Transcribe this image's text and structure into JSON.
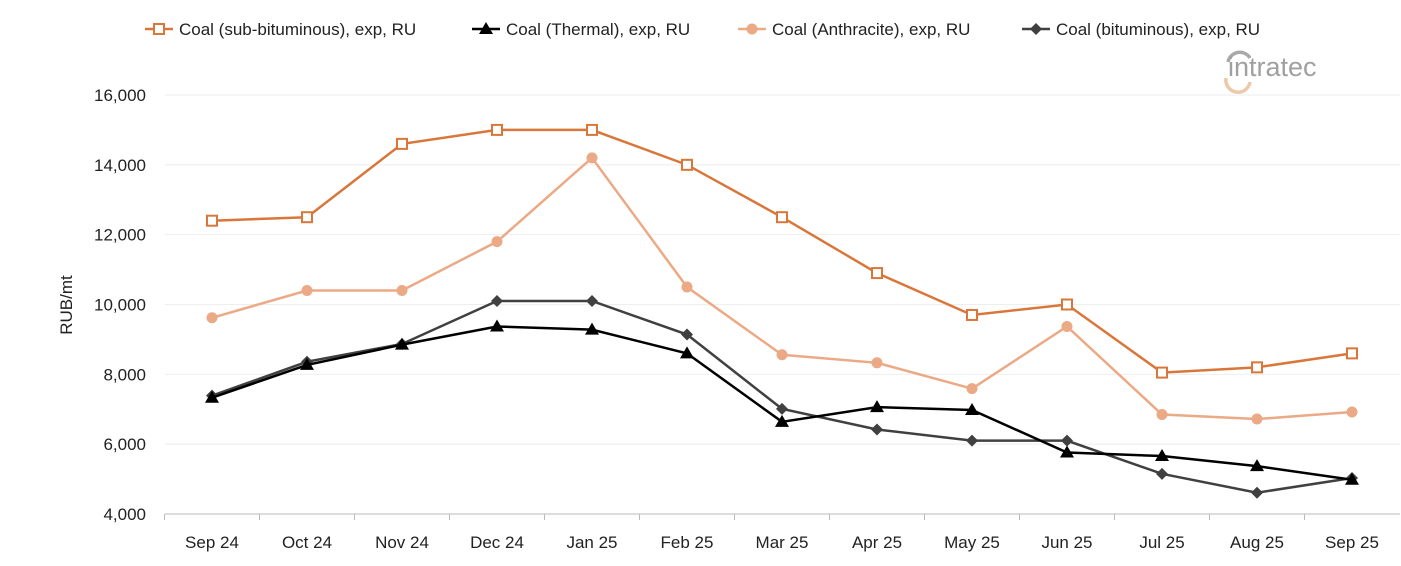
{
  "chart_data": {
    "type": "line",
    "title": "",
    "xlabel": "",
    "ylabel": "RUB/mt",
    "ylim": [
      4000,
      16000
    ],
    "yticks": [
      4000,
      6000,
      8000,
      10000,
      12000,
      14000,
      16000
    ],
    "ytick_labels": [
      "4,000",
      "6,000",
      "8,000",
      "10,000",
      "12,000",
      "14,000",
      "16,000"
    ],
    "grid": "horizontal",
    "legend_position": "top",
    "categories": [
      "Sep 24",
      "Oct 24",
      "Nov 24",
      "Dec 24",
      "Jan 25",
      "Feb 25",
      "Mar 25",
      "Apr 25",
      "May 25",
      "Jun 25",
      "Jul 25",
      "Aug 25",
      "Sep 25"
    ],
    "series": [
      {
        "name": "Coal (sub-bituminous), exp, RU",
        "color": "#D9773A",
        "marker": "square-open",
        "values": [
          12400,
          12500,
          14600,
          15000,
          15000,
          14000,
          12500,
          10900,
          9700,
          10000,
          8050,
          8200,
          8600
        ]
      },
      {
        "name": "Coal (Thermal), exp, RU",
        "color": "#000000",
        "marker": "triangle",
        "values": [
          7330,
          8270,
          8850,
          9370,
          9280,
          8600,
          6640,
          7060,
          6980,
          5760,
          5660,
          5370,
          4980
        ]
      },
      {
        "name": "Coal (Anthracite), exp, RU",
        "color": "#EBAA85",
        "marker": "circle",
        "values": [
          9620,
          10400,
          10400,
          11800,
          14200,
          10500,
          8560,
          8330,
          7590,
          9370,
          6850,
          6720,
          6920
        ]
      },
      {
        "name": "Coal (bituminous), exp, RU",
        "color": "#404040",
        "marker": "diamond",
        "values": [
          7390,
          8360,
          8870,
          10100,
          10100,
          9140,
          7010,
          6420,
          6100,
          6100,
          5150,
          4610,
          5030
        ]
      }
    ]
  },
  "logo": {
    "text": "intratec"
  }
}
